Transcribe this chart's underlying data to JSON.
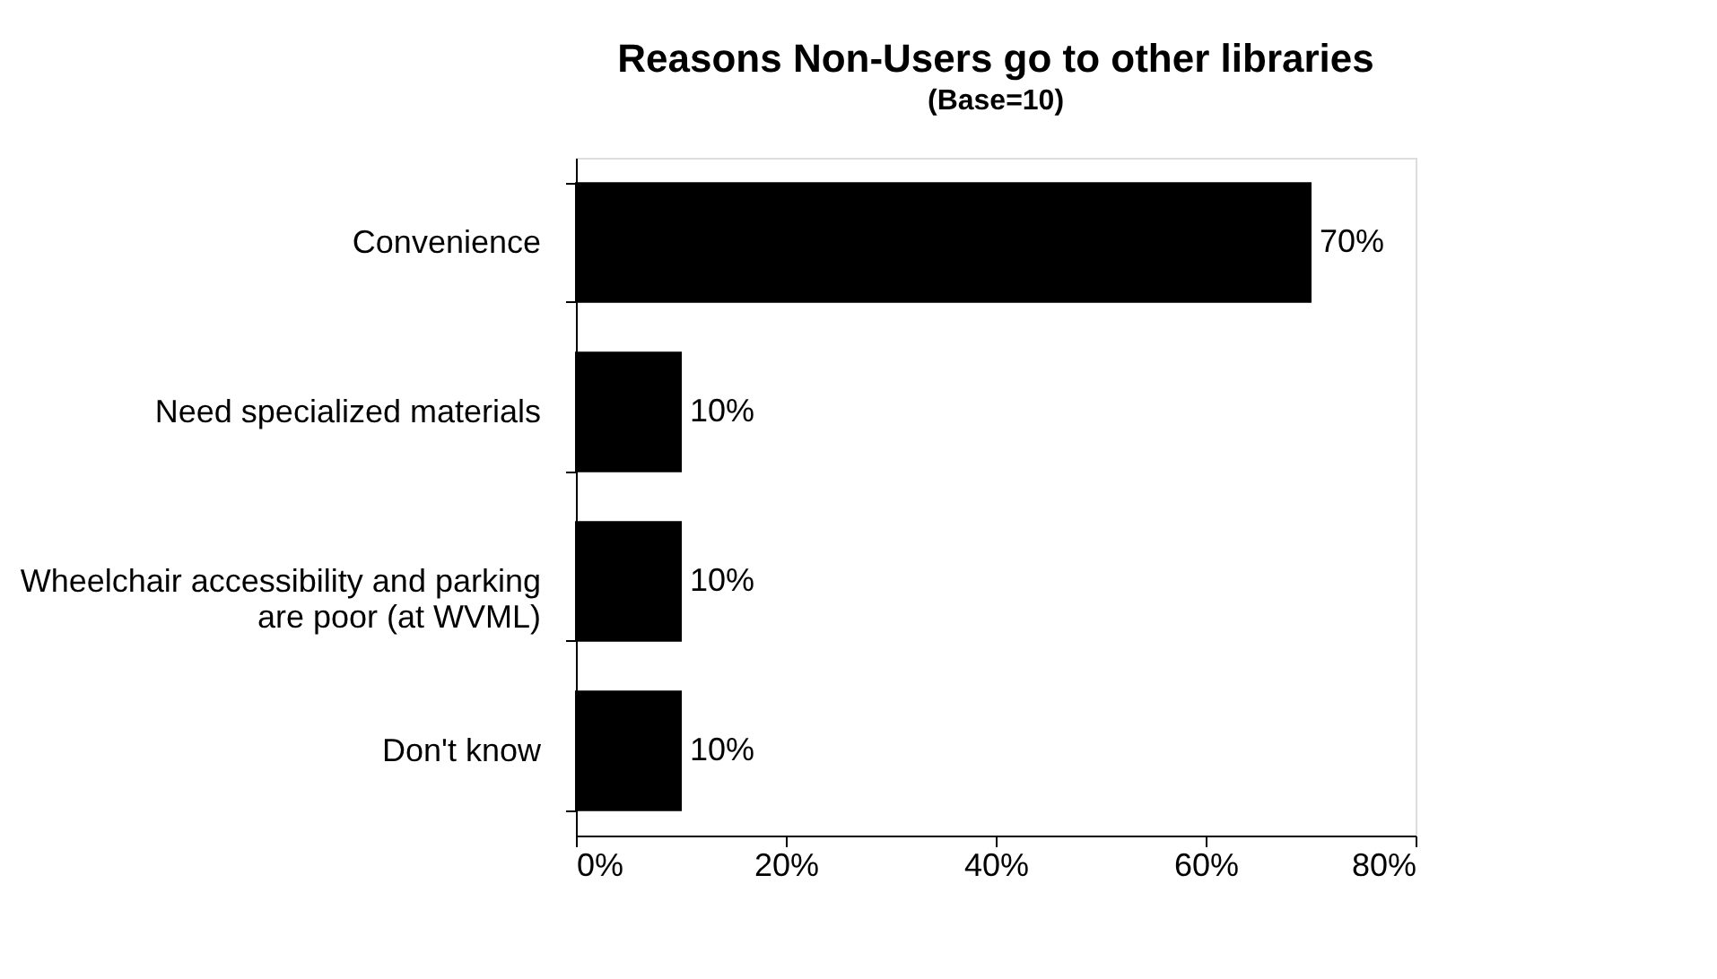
{
  "chart_data": {
    "type": "bar",
    "orientation": "horizontal",
    "title": "Reasons Non-Users go to other libraries",
    "subtitle": "(Base=10)",
    "categories": [
      "Convenience",
      "Need specialized materials",
      "Wheelchair accessibility and parking are poor (at WVML)",
      "Don't know"
    ],
    "values": [
      70,
      10,
      10,
      10
    ],
    "value_labels": [
      "70%",
      "10%",
      "10%",
      "10%"
    ],
    "color": "#000000",
    "xlim": [
      0,
      80
    ],
    "xticks": [
      {
        "value": 0,
        "label": "0%"
      },
      {
        "value": 20,
        "label": "20%"
      },
      {
        "value": 40,
        "label": "40%"
      },
      {
        "value": 60,
        "label": "60%"
      },
      {
        "value": 80,
        "label": "80%"
      }
    ],
    "grid": false
  }
}
